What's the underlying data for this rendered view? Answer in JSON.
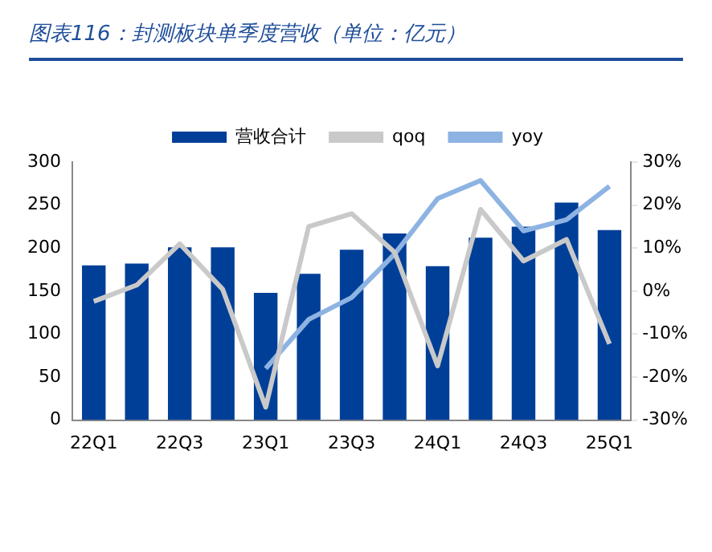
{
  "chart_data": {
    "type": "bar",
    "title": "图表116：封测板块单季度营收（单位：亿元）",
    "categories": [
      "22Q1",
      null,
      "22Q3",
      null,
      "23Q1",
      null,
      "23Q3",
      null,
      "24Q1",
      null,
      "24Q3",
      null,
      "25Q1"
    ],
    "series": [
      {
        "name": "营收合计",
        "color": "#003f98",
        "values": [
          180,
          182,
          201,
          201,
          148,
          170,
          198,
          217,
          179,
          212,
          225,
          253,
          221
        ]
      },
      {
        "name": "qoq",
        "type": "line",
        "axis": "y2",
        "color": "#c9c9c9",
        "values": [
          -2.4,
          1.4,
          11,
          0.4,
          -27,
          15,
          18,
          9,
          -17.4,
          19,
          7,
          12,
          -12.3
        ]
      },
      {
        "name": "yoy",
        "type": "line",
        "axis": "y2",
        "color": "#8db3e2",
        "values": [
          null,
          null,
          null,
          null,
          -18,
          -6.6,
          -1.5,
          8.6,
          21.5,
          25.7,
          14,
          16.6,
          24.4
        ]
      }
    ],
    "ylim": [
      0,
      300
    ],
    "yticks": [
      0,
      50,
      100,
      150,
      200,
      250,
      300
    ],
    "y2lim": [
      -30,
      30
    ],
    "y2ticks": [
      {
        "value": -30,
        "label": "-30%"
      },
      {
        "value": -20,
        "label": "-20%"
      },
      {
        "value": -10,
        "label": "-10%"
      },
      {
        "value": 0,
        "label": "0%"
      },
      {
        "value": 10,
        "label": "10%"
      },
      {
        "value": 20,
        "label": "20%"
      },
      {
        "value": 30,
        "label": "30%"
      }
    ],
    "legend": "top",
    "marker": "none",
    "line_style": "solid"
  }
}
